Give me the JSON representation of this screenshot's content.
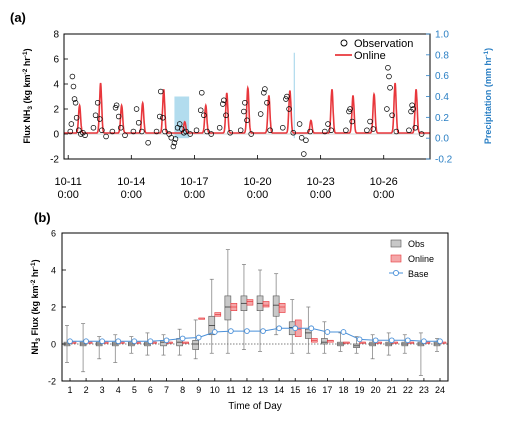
{
  "chart_data": [
    {
      "panel_label": "(a)",
      "type": "line",
      "ylabel_left": "Flux NH3 (kg km-2 hr-1)",
      "ylabel_right": "Precipitation (mm hr-1)",
      "ylim_left": [
        -2,
        8
      ],
      "ylim_right": [
        -0.2,
        1.0
      ],
      "yticks_left": [
        "-2",
        "0",
        "2",
        "4",
        "6",
        "8"
      ],
      "yticks_right": [
        "-0.2",
        "0.0",
        "0.2",
        "0.4",
        "0.6",
        "0.8",
        "1.0"
      ],
      "xticks": [
        {
          "day": 11,
          "line1": "10-11",
          "line2": "0:00"
        },
        {
          "day": 14,
          "line1": "10-14",
          "line2": "0:00"
        },
        {
          "day": 17,
          "line1": "10-17",
          "line2": "0:00"
        },
        {
          "day": 20,
          "line1": "10-20",
          "line2": "0:00"
        },
        {
          "day": 23,
          "line1": "10-23",
          "line2": "0:00"
        },
        {
          "day": 26,
          "line1": "10-26",
          "line2": "0:00"
        }
      ],
      "x_range_days": [
        10.8,
        28.2
      ],
      "legend": {
        "position": "top-right",
        "entries": [
          "Observation",
          "Online"
        ]
      },
      "online_daily_peaks": [
        {
          "day": 11,
          "peak": 2.2
        },
        {
          "day": 12,
          "peak": 4.0
        },
        {
          "day": 13,
          "peak": 2.2
        },
        {
          "day": 14,
          "peak": 2.4
        },
        {
          "day": 15,
          "peak": 3.5
        },
        {
          "day": 16,
          "peak": 0.9
        },
        {
          "day": 17,
          "peak": 2.2
        },
        {
          "day": 18,
          "peak": 3.2
        },
        {
          "day": 19,
          "peak": 3.6
        },
        {
          "day": 20,
          "peak": 3.0
        },
        {
          "day": 21,
          "peak": 3.4
        },
        {
          "day": 22,
          "peak": 1.0
        },
        {
          "day": 23,
          "peak": 3.5
        },
        {
          "day": 24,
          "peak": 3.0
        },
        {
          "day": 25,
          "peak": 3.1
        },
        {
          "day": 26,
          "peak": 4.0
        },
        {
          "day": 27,
          "peak": 3.5
        },
        {
          "day": 28,
          "peak": 3.5
        }
      ],
      "observation_points": [
        [
          11.1,
          0.2
        ],
        [
          11.15,
          0.8
        ],
        [
          11.2,
          4.6
        ],
        [
          11.25,
          3.8
        ],
        [
          11.3,
          2.8
        ],
        [
          11.35,
          2.5
        ],
        [
          11.4,
          1.3
        ],
        [
          11.5,
          0.3
        ],
        [
          11.6,
          0.0
        ],
        [
          11.7,
          0.1
        ],
        [
          11.8,
          -0.1
        ],
        [
          12.2,
          0.5
        ],
        [
          12.3,
          1.5
        ],
        [
          12.4,
          2.5
        ],
        [
          12.5,
          1.2
        ],
        [
          12.6,
          0.3
        ],
        [
          12.8,
          -0.2
        ],
        [
          13.1,
          0.2
        ],
        [
          13.25,
          2.1
        ],
        [
          13.3,
          2.3
        ],
        [
          13.4,
          1.4
        ],
        [
          13.5,
          0.5
        ],
        [
          13.7,
          -0.1
        ],
        [
          14.1,
          0.2
        ],
        [
          14.25,
          2.0
        ],
        [
          14.35,
          0.9
        ],
        [
          14.5,
          0.2
        ],
        [
          14.8,
          -0.7
        ],
        [
          15.2,
          0.2
        ],
        [
          15.35,
          1.4
        ],
        [
          15.4,
          3.4
        ],
        [
          15.5,
          1.3
        ],
        [
          15.6,
          0.2
        ],
        [
          15.8,
          0.0
        ],
        [
          15.9,
          -0.3
        ],
        [
          16.0,
          -1.0
        ],
        [
          16.05,
          -0.7
        ],
        [
          16.1,
          -0.4
        ],
        [
          16.2,
          0.5
        ],
        [
          16.3,
          0.8
        ],
        [
          16.4,
          0.4
        ],
        [
          16.5,
          0.1
        ],
        [
          16.6,
          0.2
        ],
        [
          16.8,
          0.0
        ],
        [
          17.1,
          0.3
        ],
        [
          17.3,
          1.9
        ],
        [
          17.35,
          3.3
        ],
        [
          17.45,
          1.5
        ],
        [
          17.6,
          0.2
        ],
        [
          17.8,
          0.0
        ],
        [
          18.2,
          0.5
        ],
        [
          18.35,
          2.4
        ],
        [
          18.4,
          2.7
        ],
        [
          18.5,
          1.5
        ],
        [
          18.7,
          0.1
        ],
        [
          19.2,
          0.3
        ],
        [
          19.35,
          1.8
        ],
        [
          19.4,
          2.5
        ],
        [
          19.5,
          1.1
        ],
        [
          19.7,
          0.0
        ],
        [
          20.15,
          1.6
        ],
        [
          20.3,
          3.3
        ],
        [
          20.35,
          3.6
        ],
        [
          20.45,
          2.5
        ],
        [
          20.6,
          0.3
        ],
        [
          21.2,
          0.5
        ],
        [
          21.35,
          2.8
        ],
        [
          21.4,
          3.0
        ],
        [
          21.5,
          2.0
        ],
        [
          21.7,
          0.1
        ],
        [
          22.0,
          0.8
        ],
        [
          22.1,
          -0.3
        ],
        [
          22.2,
          -1.6
        ],
        [
          22.3,
          -0.5
        ],
        [
          22.5,
          0.2
        ],
        [
          23.2,
          0.2
        ],
        [
          23.35,
          0.8
        ],
        [
          23.5,
          0.3
        ],
        [
          24.2,
          0.3
        ],
        [
          24.35,
          1.8
        ],
        [
          24.4,
          2.0
        ],
        [
          24.5,
          1.0
        ],
        [
          25.2,
          0.3
        ],
        [
          25.35,
          1.0
        ],
        [
          25.5,
          0.4
        ],
        [
          26.15,
          2.0
        ],
        [
          26.2,
          5.3
        ],
        [
          26.25,
          4.6
        ],
        [
          26.3,
          3.7
        ],
        [
          26.4,
          1.5
        ],
        [
          26.6,
          0.2
        ],
        [
          27.2,
          0.3
        ],
        [
          27.3,
          1.8
        ],
        [
          27.35,
          2.3
        ],
        [
          27.4,
          2.0
        ],
        [
          27.5,
          0.5
        ],
        [
          27.8,
          0.0
        ]
      ],
      "precipitation_bars": [
        {
          "day_start": 16.05,
          "day_end": 16.75,
          "value": 0.4
        },
        {
          "day_start": 21.72,
          "day_end": 21.78,
          "value": 0.82
        }
      ]
    },
    {
      "panel_label": "(b)",
      "type": "box",
      "xlabel": "Time of Day",
      "ylabel": "NH3 Flux (kg km-2 hr-1)",
      "ylim": [
        -2,
        6
      ],
      "yticks": [
        "-2",
        "0",
        "2",
        "4",
        "6"
      ],
      "categories": [
        "1",
        "2",
        "3",
        "4",
        "5",
        "6",
        "7",
        "8",
        "9",
        "10",
        "11",
        "12",
        "13",
        "14",
        "15",
        "16",
        "17",
        "18",
        "19",
        "20",
        "21",
        "22",
        "23",
        "24"
      ],
      "legend": {
        "position": "top-right",
        "entries": [
          "Obs",
          "Online",
          "Base"
        ]
      },
      "obs_boxes": [
        {
          "hour": 1,
          "min": -1.0,
          "q1": -0.1,
          "median": 0.0,
          "q3": 0.1,
          "max": 1.0
        },
        {
          "hour": 2,
          "min": -1.5,
          "q1": -0.1,
          "median": 0.0,
          "q3": 0.1,
          "max": 1.1
        },
        {
          "hour": 3,
          "min": -0.8,
          "q1": -0.1,
          "median": 0.0,
          "q3": 0.1,
          "max": 0.4
        },
        {
          "hour": 4,
          "min": -1.0,
          "q1": -0.1,
          "median": 0.0,
          "q3": 0.1,
          "max": 0.5
        },
        {
          "hour": 5,
          "min": -0.5,
          "q1": -0.1,
          "median": 0.0,
          "q3": 0.1,
          "max": 0.4
        },
        {
          "hour": 6,
          "min": -0.6,
          "q1": -0.1,
          "median": 0.0,
          "q3": 0.1,
          "max": 0.6
        },
        {
          "hour": 7,
          "min": -0.6,
          "q1": -0.1,
          "median": 0.1,
          "q3": 0.2,
          "max": 0.5
        },
        {
          "hour": 8,
          "min": -0.6,
          "q1": -0.1,
          "median": 0.1,
          "q3": 0.3,
          "max": 0.8
        },
        {
          "hour": 9,
          "min": -0.8,
          "q1": -0.3,
          "median": 0.0,
          "q3": 0.2,
          "max": 1.3
        },
        {
          "hour": 10,
          "min": -0.5,
          "q1": 0.5,
          "median": 1.0,
          "q3": 1.5,
          "max": 3.5
        },
        {
          "hour": 11,
          "min": -0.5,
          "q1": 1.3,
          "median": 2.0,
          "q3": 2.6,
          "max": 5.1
        },
        {
          "hour": 12,
          "min": -0.3,
          "q1": 1.8,
          "median": 2.2,
          "q3": 2.6,
          "max": 4.3
        },
        {
          "hour": 13,
          "min": -0.4,
          "q1": 1.8,
          "median": 2.2,
          "q3": 2.6,
          "max": 4.0
        },
        {
          "hour": 14,
          "min": 0.5,
          "q1": 1.5,
          "median": 2.1,
          "q3": 2.6,
          "max": 3.8
        },
        {
          "hour": 15,
          "min": -0.5,
          "q1": 0.5,
          "median": 0.9,
          "q3": 1.2,
          "max": 2.4
        },
        {
          "hour": 16,
          "min": -0.5,
          "q1": 0.3,
          "median": 0.6,
          "q3": 0.8,
          "max": 2.0
        },
        {
          "hour": 17,
          "min": -0.5,
          "q1": 0.0,
          "median": 0.1,
          "q3": 0.3,
          "max": 1.2
        },
        {
          "hour": 18,
          "min": -0.4,
          "q1": -0.1,
          "median": 0.0,
          "q3": 0.1,
          "max": 0.6
        },
        {
          "hour": 19,
          "min": -0.5,
          "q1": -0.2,
          "median": -0.1,
          "q3": 0.0,
          "max": 0.4
        },
        {
          "hour": 20,
          "min": -0.8,
          "q1": -0.1,
          "median": 0.0,
          "q3": 0.1,
          "max": 0.5
        },
        {
          "hour": 21,
          "min": -0.6,
          "q1": -0.1,
          "median": 0.0,
          "q3": 0.1,
          "max": 0.6
        },
        {
          "hour": 22,
          "min": -0.5,
          "q1": -0.1,
          "median": 0.0,
          "q3": 0.1,
          "max": 0.5
        },
        {
          "hour": 23,
          "min": -1.7,
          "q1": -0.1,
          "median": 0.0,
          "q3": 0.1,
          "max": 0.6
        },
        {
          "hour": 24,
          "min": -0.4,
          "q1": -0.1,
          "median": 0.0,
          "q3": 0.1,
          "max": 0.3
        }
      ],
      "online_boxes": [
        {
          "hour": 1,
          "q1": 0.1,
          "median": 0.1,
          "q3": 0.1
        },
        {
          "hour": 2,
          "q1": 0.1,
          "median": 0.1,
          "q3": 0.1
        },
        {
          "hour": 3,
          "q1": 0.1,
          "median": 0.1,
          "q3": 0.1
        },
        {
          "hour": 4,
          "q1": 0.1,
          "median": 0.1,
          "q3": 0.1
        },
        {
          "hour": 5,
          "q1": 0.1,
          "median": 0.1,
          "q3": 0.1
        },
        {
          "hour": 6,
          "q1": 0.1,
          "median": 0.1,
          "q3": 0.1
        },
        {
          "hour": 7,
          "q1": 0.1,
          "median": 0.1,
          "q3": 0.1
        },
        {
          "hour": 8,
          "q1": 0.1,
          "median": 0.1,
          "q3": 0.1
        },
        {
          "hour": 9,
          "q1": 1.4,
          "median": 1.4,
          "q3": 1.4
        },
        {
          "hour": 10,
          "q1": 1.5,
          "median": 1.6,
          "q3": 1.7
        },
        {
          "hour": 11,
          "q1": 1.8,
          "median": 2.0,
          "q3": 2.2
        },
        {
          "hour": 12,
          "q1": 2.1,
          "median": 2.3,
          "q3": 2.4
        },
        {
          "hour": 13,
          "q1": 2.0,
          "median": 2.1,
          "q3": 2.3
        },
        {
          "hour": 14,
          "q1": 1.7,
          "median": 2.0,
          "q3": 2.2
        },
        {
          "hour": 15,
          "q1": 0.4,
          "median": 0.8,
          "q3": 1.3
        },
        {
          "hour": 16,
          "q1": 0.1,
          "median": 0.2,
          "q3": 0.3
        },
        {
          "hour": 17,
          "q1": 0.1,
          "median": 0.2,
          "q3": 0.2
        },
        {
          "hour": 18,
          "q1": 0.1,
          "median": 0.1,
          "q3": 0.1
        },
        {
          "hour": 19,
          "q1": 0.1,
          "median": 0.1,
          "q3": 0.1
        },
        {
          "hour": 20,
          "q1": 0.1,
          "median": 0.1,
          "q3": 0.1
        },
        {
          "hour": 21,
          "q1": 0.1,
          "median": 0.1,
          "q3": 0.1
        },
        {
          "hour": 22,
          "q1": 0.1,
          "median": 0.1,
          "q3": 0.1
        },
        {
          "hour": 23,
          "q1": 0.1,
          "median": 0.1,
          "q3": 0.1
        },
        {
          "hour": 24,
          "q1": 0.1,
          "median": 0.1,
          "q3": 0.1
        }
      ],
      "base_series": {
        "name": "Base",
        "values": [
          0.15,
          0.15,
          0.15,
          0.15,
          0.15,
          0.15,
          0.2,
          0.3,
          0.35,
          0.65,
          0.7,
          0.7,
          0.7,
          0.85,
          0.85,
          0.85,
          0.65,
          0.65,
          0.25,
          0.2,
          0.2,
          0.2,
          0.15,
          0.15
        ]
      }
    }
  ],
  "colors": {
    "observation": "#000000",
    "online": "#e8373c",
    "precip": "#9fd3ea",
    "right_axis": "#2a7fc4",
    "obs_box": "#c8c8c8",
    "online_box": "#f4a7a9",
    "base": "#4a90d9"
  }
}
